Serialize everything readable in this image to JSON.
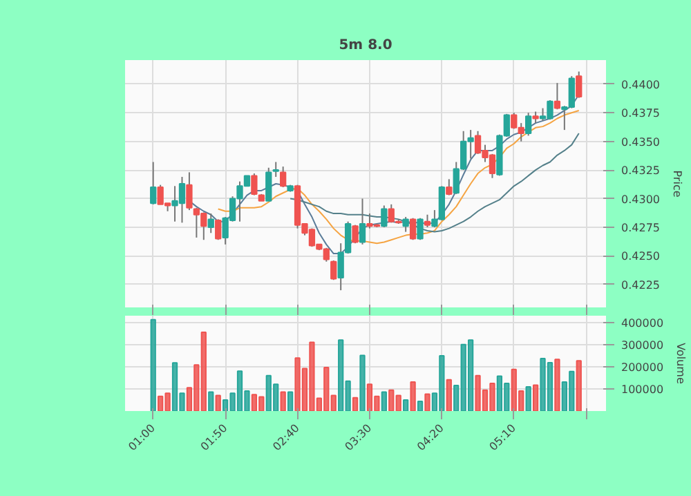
{
  "chart_data": [
    {
      "type": "candlestick",
      "title": "5m 8.0",
      "ylabel": "Price",
      "x": [
        1,
        1.0833,
        1.1667,
        1.25,
        1.3333,
        1.4167,
        1.5,
        1.5833,
        1.6667,
        1.75,
        1.8333,
        1.9167,
        2,
        2.0833,
        2.1667,
        2.25,
        2.3333,
        2.4167,
        2.5,
        2.5833,
        2.6667,
        2.75,
        2.8333,
        2.9167,
        3,
        3.0833,
        3.1667,
        3.25,
        3.3333,
        3.4167,
        3.5,
        3.5833,
        3.6667,
        3.75,
        3.8333,
        3.9167,
        4,
        4.0833,
        4.1667,
        4.25,
        4.3333,
        4.4167,
        4.5,
        4.5833,
        4.6667,
        4.75,
        4.8333,
        4.9167,
        5,
        5.0833,
        5.1667,
        5.25,
        5.3333,
        5.4167,
        5.5,
        5.5833,
        5.6667,
        5.75,
        5.8333,
        5.9167
      ],
      "ohlc": [
        [
          0.4296,
          0.4332,
          0.4295,
          0.431
        ],
        [
          0.431,
          0.4312,
          0.4295,
          0.4295
        ],
        [
          0.4296,
          0.4296,
          0.4289,
          0.4294
        ],
        [
          0.4294,
          0.4311,
          0.428,
          0.4298
        ],
        [
          0.4296,
          0.4319,
          0.4279,
          0.4313
        ],
        [
          0.4312,
          0.4323,
          0.429,
          0.4292
        ],
        [
          0.4291,
          0.4292,
          0.4266,
          0.4286
        ],
        [
          0.4287,
          0.4288,
          0.4264,
          0.4276
        ],
        [
          0.4275,
          0.4287,
          0.427,
          0.4282
        ],
        [
          0.4281,
          0.4282,
          0.4264,
          0.4265
        ],
        [
          0.4266,
          0.4284,
          0.426,
          0.4283
        ],
        [
          0.4281,
          0.4302,
          0.428,
          0.43
        ],
        [
          0.43,
          0.4315,
          0.428,
          0.4311
        ],
        [
          0.4311,
          0.432,
          0.4311,
          0.432
        ],
        [
          0.432,
          0.4322,
          0.4303,
          0.4304
        ],
        [
          0.4303,
          0.4304,
          0.4298,
          0.4298
        ],
        [
          0.4298,
          0.4327,
          0.4298,
          0.4323
        ],
        [
          0.4324,
          0.4332,
          0.4319,
          0.4325
        ],
        [
          0.4323,
          0.4328,
          0.431,
          0.4311
        ],
        [
          0.4307,
          0.4312,
          0.4306,
          0.4311
        ],
        [
          0.4311,
          0.4312,
          0.4274,
          0.4277
        ],
        [
          0.4278,
          0.4278,
          0.4268,
          0.427
        ],
        [
          0.4273,
          0.4274,
          0.4258,
          0.4259
        ],
        [
          0.426,
          0.426,
          0.4255,
          0.4256
        ],
        [
          0.4256,
          0.4257,
          0.4245,
          0.4247
        ],
        [
          0.4245,
          0.4246,
          0.4229,
          0.423
        ],
        [
          0.4231,
          0.4261,
          0.422,
          0.4253
        ],
        [
          0.4253,
          0.428,
          0.4252,
          0.4278
        ],
        [
          0.4276,
          0.4277,
          0.4261,
          0.4262
        ],
        [
          0.4262,
          0.43,
          0.426,
          0.4278
        ],
        [
          0.4278,
          0.4287,
          0.4274,
          0.4276
        ],
        [
          0.4277,
          0.4278,
          0.4275,
          0.4276
        ],
        [
          0.4276,
          0.4294,
          0.4275,
          0.4291
        ],
        [
          0.4291,
          0.4295,
          0.4279,
          0.428
        ],
        [
          0.428,
          0.4282,
          0.4278,
          0.4279
        ],
        [
          0.4276,
          0.4284,
          0.4271,
          0.4282
        ],
        [
          0.4282,
          0.4283,
          0.4264,
          0.4265
        ],
        [
          0.4265,
          0.4283,
          0.4264,
          0.4282
        ],
        [
          0.428,
          0.4286,
          0.4275,
          0.4277
        ],
        [
          0.4276,
          0.429,
          0.4275,
          0.4282
        ],
        [
          0.4282,
          0.4311,
          0.4281,
          0.431
        ],
        [
          0.431,
          0.4317,
          0.4303,
          0.4304
        ],
        [
          0.4305,
          0.4332,
          0.4304,
          0.4326
        ],
        [
          0.4326,
          0.4359,
          0.4325,
          0.435
        ],
        [
          0.435,
          0.436,
          0.4335,
          0.4353
        ],
        [
          0.4355,
          0.4359,
          0.4339,
          0.434
        ],
        [
          0.4342,
          0.4347,
          0.4332,
          0.4336
        ],
        [
          0.4338,
          0.4339,
          0.4318,
          0.4322
        ],
        [
          0.4321,
          0.4356,
          0.432,
          0.4355
        ],
        [
          0.4355,
          0.4374,
          0.4354,
          0.4373
        ],
        [
          0.4373,
          0.4375,
          0.4361,
          0.4362
        ],
        [
          0.4362,
          0.4366,
          0.435,
          0.4357
        ],
        [
          0.4357,
          0.4375,
          0.4355,
          0.4372
        ],
        [
          0.4372,
          0.4376,
          0.4366,
          0.437
        ],
        [
          0.437,
          0.4379,
          0.4368,
          0.4372
        ],
        [
          0.437,
          0.4386,
          0.4369,
          0.4385
        ],
        [
          0.4385,
          0.4401,
          0.4378,
          0.4379
        ],
        [
          0.4378,
          0.4381,
          0.436,
          0.438
        ],
        [
          0.438,
          0.4407,
          0.4379,
          0.4405
        ],
        [
          0.4407,
          0.4411,
          0.4388,
          0.4389
        ]
      ],
      "colors": [
        "#26a69a",
        "#ef5350",
        "#ef5350",
        "#26a69a",
        "#26a69a",
        "#ef5350",
        "#ef5350",
        "#ef5350",
        "#26a69a",
        "#ef5350",
        "#26a69a",
        "#26a69a",
        "#26a69a",
        "#26a69a",
        "#ef5350",
        "#ef5350",
        "#26a69a",
        "#26a69a",
        "#ef5350",
        "#26a69a",
        "#ef5350",
        "#ef5350",
        "#ef5350",
        "#ef5350",
        "#ef5350",
        "#ef5350",
        "#26a69a",
        "#26a69a",
        "#ef5350",
        "#26a69a",
        "#ef5350",
        "#ef5350",
        "#26a69a",
        "#ef5350",
        "#ef5350",
        "#26a69a",
        "#ef5350",
        "#26a69a",
        "#ef5350",
        "#26a69a",
        "#26a69a",
        "#ef5350",
        "#26a69a",
        "#26a69a",
        "#26a69a",
        "#ef5350",
        "#ef5350",
        "#ef5350",
        "#26a69a",
        "#26a69a",
        "#ef5350",
        "#ef5350",
        "#26a69a",
        "#ef5350",
        "#26a69a",
        "#26a69a",
        "#ef5350",
        "#26a69a",
        "#26a69a",
        "#ef5350"
      ],
      "series": [
        {
          "type": "line",
          "color": "#5b7c99",
          "values": [
            null,
            null,
            null,
            null,
            null,
            0.4298,
            0.4293,
            0.4289,
            0.4286,
            0.428,
            0.428,
            0.4287,
            0.4295,
            0.4303,
            0.4307,
            0.4307,
            0.431,
            0.4313,
            0.4312,
            0.431,
            0.4307,
            0.4295,
            0.4284,
            0.427,
            0.426,
            0.4252,
            0.4252,
            0.4258,
            0.4266,
            0.4274,
            0.4277,
            0.4278,
            0.4279,
            0.428,
            0.4279,
            0.428,
            0.4279,
            0.4279,
            0.4278,
            0.4279,
            0.4286,
            0.4295,
            0.4307,
            0.4321,
            0.4334,
            0.4342,
            0.4342,
            0.4342,
            0.4346,
            0.4352,
            0.4356,
            0.4358,
            0.4362,
            0.4366,
            0.4368,
            0.437,
            0.4373,
            0.4377,
            0.4381,
            0.4391
          ]
        },
        {
          "type": "line",
          "color": "#f5a442",
          "values": [
            null,
            null,
            null,
            null,
            null,
            null,
            null,
            null,
            null,
            0.4291,
            0.4289,
            0.4289,
            0.4292,
            0.4292,
            0.4292,
            0.4293,
            0.4297,
            0.4302,
            0.4305,
            0.4308,
            0.4309,
            0.4303,
            0.4295,
            0.4289,
            0.4282,
            0.4274,
            0.4268,
            0.4264,
            0.4263,
            0.4263,
            0.4262,
            0.4261,
            0.4262,
            0.4264,
            0.4266,
            0.4268,
            0.4269,
            0.4269,
            0.427,
            0.4272,
            0.428,
            0.4286,
            0.4293,
            0.4303,
            0.4313,
            0.4322,
            0.4327,
            0.433,
            0.4336,
            0.4344,
            0.4348,
            0.4354,
            0.4358,
            0.4362,
            0.4363,
            0.4366,
            0.437,
            0.4373,
            0.4375,
            0.4377
          ]
        },
        {
          "type": "line",
          "color": "#54808a",
          "values": [
            null,
            null,
            null,
            null,
            null,
            null,
            null,
            null,
            null,
            null,
            null,
            null,
            null,
            null,
            null,
            null,
            null,
            null,
            null,
            0.43,
            0.4299,
            0.4297,
            0.4295,
            0.4293,
            0.4289,
            0.4287,
            0.4287,
            0.4286,
            0.4286,
            0.4286,
            0.4285,
            0.4284,
            0.4284,
            0.4283,
            0.4282,
            0.428,
            0.4277,
            0.4274,
            0.4272,
            0.4271,
            0.4272,
            0.4274,
            0.4277,
            0.428,
            0.4284,
            0.4289,
            0.4293,
            0.4296,
            0.4299,
            0.4305,
            0.4311,
            0.4315,
            0.432,
            0.4325,
            0.4329,
            0.4332,
            0.4338,
            0.4342,
            0.4347,
            0.4357
          ]
        }
      ],
      "xlim": [
        0.675,
        6.23
      ],
      "ylim": [
        0.4205,
        0.4421
      ],
      "xticks": [
        {
          "value": 1,
          "label": null
        },
        {
          "value": 1.8333,
          "label": null
        },
        {
          "value": 2.6667,
          "label": null
        },
        {
          "value": 3.5,
          "label": null
        },
        {
          "value": 4.3333,
          "label": null
        },
        {
          "value": 5.1667,
          "label": null
        },
        {
          "value": 6,
          "label": null
        }
      ],
      "yticks": [
        {
          "value": 0.4225,
          "label": "0.4225"
        },
        {
          "value": 0.425,
          "label": "0.4250"
        },
        {
          "value": 0.4275,
          "label": "0.4275"
        },
        {
          "value": 0.43,
          "label": "0.4300"
        },
        {
          "value": 0.4325,
          "label": "0.4325"
        },
        {
          "value": 0.435,
          "label": "0.4350"
        },
        {
          "value": 0.4375,
          "label": "0.4375"
        },
        {
          "value": 0.44,
          "label": "0.4400"
        }
      ],
      "grid": true,
      "tick_labels": "y"
    },
    {
      "type": "bar",
      "ylabel": "Volume",
      "x": [
        1,
        1.0833,
        1.1667,
        1.25,
        1.3333,
        1.4167,
        1.5,
        1.5833,
        1.6667,
        1.75,
        1.8333,
        1.9167,
        2,
        2.0833,
        2.1667,
        2.25,
        2.3333,
        2.4167,
        2.5,
        2.5833,
        2.6667,
        2.75,
        2.8333,
        2.9167,
        3,
        3.0833,
        3.1667,
        3.25,
        3.3333,
        3.4167,
        3.5,
        3.5833,
        3.6667,
        3.75,
        3.8333,
        3.9167,
        4,
        4.0833,
        4.1667,
        4.25,
        4.3333,
        4.4167,
        4.5,
        4.5833,
        4.6667,
        4.75,
        4.8333,
        4.9167,
        5,
        5.0833,
        5.1667,
        5.25,
        5.3333,
        5.4167,
        5.5,
        5.5833,
        5.6667,
        5.75,
        5.8333,
        5.9167
      ],
      "values": [
        412000,
        66000,
        80000,
        217000,
        80000,
        105000,
        208000,
        355000,
        86000,
        70000,
        50000,
        80000,
        180000,
        90000,
        74000,
        64000,
        160000,
        121000,
        86000,
        86000,
        239000,
        192000,
        310000,
        58000,
        196000,
        70000,
        320000,
        135000,
        60000,
        251000,
        121000,
        66000,
        86000,
        94000,
        70000,
        50000,
        131000,
        44000,
        76000,
        80000,
        249000,
        141000,
        115000,
        300000,
        320000,
        160000,
        94000,
        125000,
        157000,
        125000,
        188000,
        90000,
        109000,
        117000,
        237000,
        218000,
        233000,
        131000,
        178000,
        227000
      ],
      "colors": [
        "#26a69a",
        "#ef5350",
        "#ef5350",
        "#26a69a",
        "#26a69a",
        "#ef5350",
        "#ef5350",
        "#ef5350",
        "#26a69a",
        "#ef5350",
        "#26a69a",
        "#26a69a",
        "#26a69a",
        "#26a69a",
        "#ef5350",
        "#ef5350",
        "#26a69a",
        "#26a69a",
        "#ef5350",
        "#26a69a",
        "#ef5350",
        "#ef5350",
        "#ef5350",
        "#ef5350",
        "#ef5350",
        "#ef5350",
        "#26a69a",
        "#26a69a",
        "#ef5350",
        "#26a69a",
        "#ef5350",
        "#ef5350",
        "#26a69a",
        "#ef5350",
        "#ef5350",
        "#26a69a",
        "#ef5350",
        "#26a69a",
        "#ef5350",
        "#26a69a",
        "#26a69a",
        "#ef5350",
        "#26a69a",
        "#26a69a",
        "#26a69a",
        "#ef5350",
        "#ef5350",
        "#ef5350",
        "#26a69a",
        "#26a69a",
        "#ef5350",
        "#ef5350",
        "#26a69a",
        "#ef5350",
        "#26a69a",
        "#26a69a",
        "#ef5350",
        "#26a69a",
        "#26a69a",
        "#ef5350"
      ],
      "xlim": [
        0.675,
        6.23
      ],
      "ylim": [
        0,
        430000
      ],
      "xticks": [
        {
          "value": 1,
          "label": "01:00"
        },
        {
          "value": 1.8333,
          "label": "01:50"
        },
        {
          "value": 2.6667,
          "label": "02:40"
        },
        {
          "value": 3.5,
          "label": "03:30"
        },
        {
          "value": 4.3333,
          "label": "04:20"
        },
        {
          "value": 5.1667,
          "label": "05:10"
        },
        {
          "value": 6,
          "label": null
        }
      ],
      "yticks": [
        100000,
        200000,
        300000,
        400000
      ],
      "grid": true
    }
  ]
}
